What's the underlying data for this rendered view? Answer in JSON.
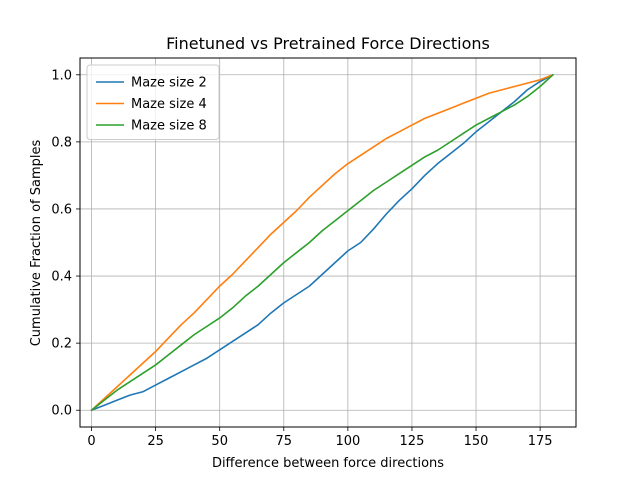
{
  "chart_data": {
    "type": "line",
    "title": "Finetuned vs Pretrained Force Directions",
    "xlabel": "Difference between force directions",
    "ylabel": "Cumulative Fraction of Samples",
    "xlim": [
      -4.5,
      189
    ],
    "ylim": [
      -0.05,
      1.05
    ],
    "xticks": [
      0,
      25,
      50,
      75,
      100,
      125,
      150,
      175
    ],
    "yticks": [
      0.0,
      0.2,
      0.4,
      0.6,
      0.8,
      1.0
    ],
    "xtick_labels": [
      "0",
      "25",
      "50",
      "75",
      "100",
      "125",
      "150",
      "175"
    ],
    "ytick_labels": [
      "0.0",
      "0.2",
      "0.4",
      "0.6",
      "0.8",
      "1.0"
    ],
    "grid": true,
    "legend_position": "upper-left",
    "series": [
      {
        "name": "Maze size 2",
        "color": "#1f77b4",
        "x": [
          0,
          5,
          10,
          15,
          20,
          25,
          30,
          35,
          40,
          45,
          50,
          55,
          60,
          65,
          70,
          75,
          80,
          85,
          90,
          95,
          100,
          105,
          110,
          115,
          120,
          125,
          130,
          135,
          140,
          145,
          150,
          155,
          160,
          165,
          170,
          175,
          180
        ],
        "y": [
          0.0,
          0.015,
          0.03,
          0.045,
          0.055,
          0.075,
          0.095,
          0.115,
          0.135,
          0.155,
          0.18,
          0.205,
          0.23,
          0.255,
          0.29,
          0.32,
          0.345,
          0.37,
          0.405,
          0.44,
          0.475,
          0.5,
          0.54,
          0.585,
          0.625,
          0.66,
          0.7,
          0.735,
          0.765,
          0.795,
          0.83,
          0.86,
          0.89,
          0.92,
          0.955,
          0.98,
          1.0
        ]
      },
      {
        "name": "Maze size 4",
        "color": "#ff7f0e",
        "x": [
          0,
          5,
          10,
          15,
          20,
          25,
          30,
          35,
          40,
          45,
          50,
          55,
          60,
          65,
          70,
          75,
          80,
          85,
          90,
          95,
          100,
          105,
          110,
          115,
          120,
          125,
          130,
          135,
          140,
          145,
          150,
          155,
          160,
          165,
          170,
          175,
          180
        ],
        "y": [
          0.0,
          0.035,
          0.07,
          0.105,
          0.14,
          0.175,
          0.215,
          0.255,
          0.29,
          0.33,
          0.37,
          0.405,
          0.445,
          0.485,
          0.525,
          0.56,
          0.595,
          0.635,
          0.67,
          0.705,
          0.735,
          0.76,
          0.785,
          0.81,
          0.83,
          0.85,
          0.87,
          0.885,
          0.9,
          0.915,
          0.93,
          0.945,
          0.955,
          0.965,
          0.975,
          0.985,
          1.0
        ]
      },
      {
        "name": "Maze size 8",
        "color": "#2ca02c",
        "x": [
          0,
          5,
          10,
          15,
          20,
          25,
          30,
          35,
          40,
          45,
          50,
          55,
          60,
          65,
          70,
          75,
          80,
          85,
          90,
          95,
          100,
          105,
          110,
          115,
          120,
          125,
          130,
          135,
          140,
          145,
          150,
          155,
          160,
          165,
          170,
          175,
          180
        ],
        "y": [
          0.0,
          0.03,
          0.06,
          0.085,
          0.11,
          0.135,
          0.165,
          0.195,
          0.225,
          0.25,
          0.275,
          0.305,
          0.34,
          0.37,
          0.405,
          0.44,
          0.47,
          0.5,
          0.535,
          0.565,
          0.595,
          0.625,
          0.655,
          0.68,
          0.705,
          0.73,
          0.755,
          0.775,
          0.8,
          0.825,
          0.85,
          0.87,
          0.89,
          0.91,
          0.935,
          0.965,
          1.0
        ]
      }
    ]
  }
}
